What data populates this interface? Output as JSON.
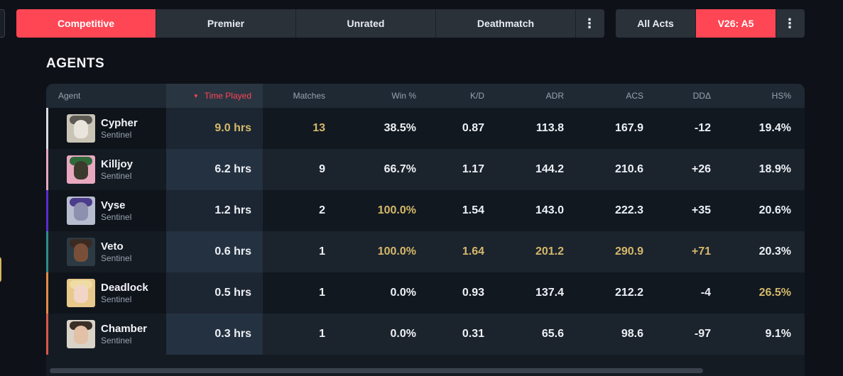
{
  "filters": {
    "modes": [
      {
        "label": "Competitive",
        "active": true
      },
      {
        "label": "Premier",
        "active": false
      },
      {
        "label": "Unrated",
        "active": false
      },
      {
        "label": "Deathmatch",
        "active": false
      }
    ],
    "more_icon": "⋮",
    "acts": [
      {
        "label": "All Acts",
        "active": false
      },
      {
        "label": "V26: A5",
        "active": true
      }
    ]
  },
  "section_title": "AGENTS",
  "table": {
    "headers": {
      "agent": "Agent",
      "time": "Time Played",
      "matches": "Matches",
      "win": "Win %",
      "kd": "K/D",
      "adr": "ADR",
      "acs": "ACS",
      "dd": "DDΔ",
      "hs": "HS%"
    },
    "sort_icon": "▼",
    "rows": [
      {
        "name": "Cypher",
        "role": "Sentinel",
        "time": "9.0 hrs",
        "matches": "13",
        "win": "38.5%",
        "kd": "0.87",
        "adr": "113.8",
        "acs": "167.9",
        "dd": "-12",
        "hs": "19.4%"
      },
      {
        "name": "Killjoy",
        "role": "Sentinel",
        "time": "6.2 hrs",
        "matches": "9",
        "win": "66.7%",
        "kd": "1.17",
        "adr": "144.2",
        "acs": "210.6",
        "dd": "+26",
        "hs": "18.9%"
      },
      {
        "name": "Vyse",
        "role": "Sentinel",
        "time": "1.2 hrs",
        "matches": "2",
        "win": "100.0%",
        "kd": "1.54",
        "adr": "143.0",
        "acs": "222.3",
        "dd": "+35",
        "hs": "20.6%"
      },
      {
        "name": "Veto",
        "role": "Sentinel",
        "time": "0.6 hrs",
        "matches": "1",
        "win": "100.0%",
        "kd": "1.64",
        "adr": "201.2",
        "acs": "290.9",
        "dd": "+71",
        "hs": "20.3%"
      },
      {
        "name": "Deadlock",
        "role": "Sentinel",
        "time": "0.5 hrs",
        "matches": "1",
        "win": "0.0%",
        "kd": "0.93",
        "adr": "137.4",
        "acs": "212.2",
        "dd": "-4",
        "hs": "26.5%"
      },
      {
        "name": "Chamber",
        "role": "Sentinel",
        "time": "0.3 hrs",
        "matches": "1",
        "win": "0.0%",
        "kd": "0.31",
        "adr": "65.6",
        "acs": "98.6",
        "dd": "-97",
        "hs": "9.1%"
      }
    ]
  },
  "colors": {
    "accent": "#fe4654",
    "highlight": "#d5b96a",
    "agent_stripes": [
      "#d8dde3",
      "#e7a8c4",
      "#5a2bd0",
      "#2f8c8f",
      "#e58a46",
      "#d7584a"
    ]
  }
}
